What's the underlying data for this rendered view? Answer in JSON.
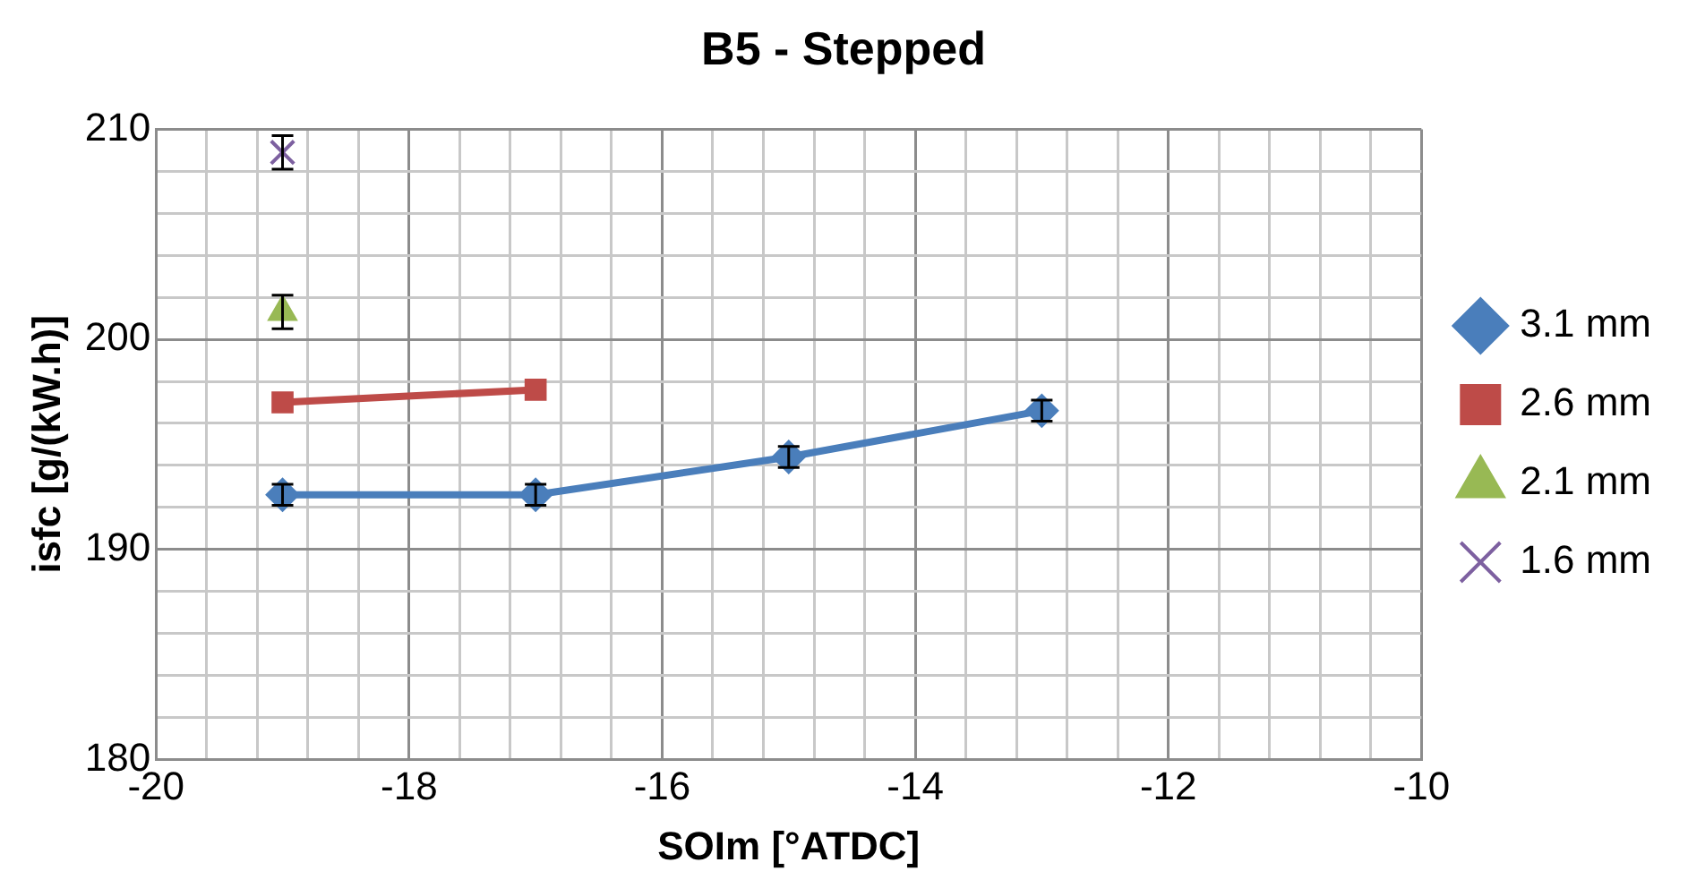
{
  "chart_data": {
    "type": "line",
    "title": "B5 - Stepped",
    "xlabel": "SOIm [°ATDC]",
    "ylabel": "isfc [g/(kW.h)]",
    "xlim": [
      -20,
      -10
    ],
    "ylim": [
      180,
      210
    ],
    "xticks": [
      -20,
      {
        "value": -19.6,
        "label": null
      },
      {
        "value": -19.2,
        "label": null
      },
      {
        "value": -18.8,
        "label": null
      },
      {
        "value": -18.4,
        "label": null
      },
      -18,
      {
        "value": -17.6,
        "label": null
      },
      {
        "value": -17.2,
        "label": null
      },
      {
        "value": -16.8,
        "label": null
      },
      {
        "value": -16.4,
        "label": null
      },
      -16,
      {
        "value": -15.6,
        "label": null
      },
      {
        "value": -15.2,
        "label": null
      },
      {
        "value": -14.8,
        "label": null
      },
      {
        "value": -14.4,
        "label": null
      },
      -14,
      {
        "value": -13.6,
        "label": null
      },
      {
        "value": -13.2,
        "label": null
      },
      {
        "value": -12.8,
        "label": null
      },
      {
        "value": -12.4,
        "label": null
      },
      -12,
      {
        "value": -11.6,
        "label": null
      },
      {
        "value": -11.2,
        "label": null
      },
      {
        "value": -10.8,
        "label": null
      },
      {
        "value": -10.4,
        "label": null
      },
      -10
    ],
    "yticks": [
      180,
      {
        "value": 182,
        "label": null
      },
      {
        "value": 184,
        "label": null
      },
      {
        "value": 186,
        "label": null
      },
      {
        "value": 188,
        "label": null
      },
      190,
      {
        "value": 192,
        "label": null
      },
      {
        "value": 194,
        "label": null
      },
      {
        "value": 196,
        "label": null
      },
      {
        "value": 198,
        "label": null
      },
      200,
      {
        "value": 202,
        "label": null
      },
      {
        "value": 204,
        "label": null
      },
      {
        "value": 206,
        "label": null
      },
      {
        "value": 208,
        "label": null
      },
      210
    ],
    "grid": true,
    "legend": "right",
    "line_style": "solid",
    "series": [
      {
        "name": "3.1 mm",
        "color": "#4a7ebb",
        "marker": "diamond",
        "x": [
          -19,
          -17,
          -15,
          -13
        ],
        "values": [
          192.6,
          192.6,
          194.4,
          196.6
        ],
        "errors": [
          0.5,
          0.5,
          0.5,
          0.5
        ]
      },
      {
        "name": "2.6 mm",
        "color": "#be4b48",
        "marker": "square",
        "x": [
          -19,
          -17
        ],
        "values": [
          197.0,
          197.6
        ]
      },
      {
        "name": "2.1 mm",
        "color": "#98b954",
        "marker": "triangle",
        "x": [
          -19
        ],
        "values": [
          201.3
        ],
        "errors": [
          0.8
        ]
      },
      {
        "name": "1.6 mm",
        "color": "#7d60a0",
        "marker": "cross",
        "x": [
          -19
        ],
        "values": [
          208.9
        ],
        "errors": [
          0.8
        ]
      }
    ]
  }
}
